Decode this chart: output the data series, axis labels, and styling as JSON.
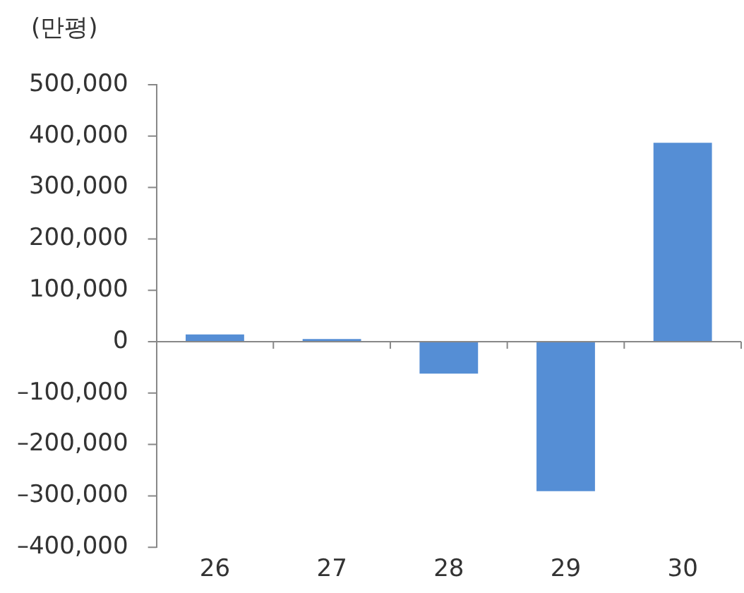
{
  "chart_data": {
    "type": "bar",
    "ylabel": "(만평)",
    "categories": [
      "26",
      "27",
      "28",
      "29",
      "30"
    ],
    "values": [
      14000,
      5000,
      -62000,
      -291000,
      387000
    ],
    "color": "#558ed5",
    "ylim": [
      -400000,
      500000
    ],
    "yticks": [
      {
        "value": -400000,
        "label": "–400,000"
      },
      {
        "value": -300000,
        "label": "–300,000"
      },
      {
        "value": -200000,
        "label": "–200,000"
      },
      {
        "value": -100000,
        "label": "–100,000"
      },
      {
        "value": 0,
        "label": "0"
      },
      {
        "value": 100000,
        "label": "100,000"
      },
      {
        "value": 200000,
        "label": "200,000"
      },
      {
        "value": 300000,
        "label": "300,000"
      },
      {
        "value": 400000,
        "label": "400,000"
      },
      {
        "value": 500000,
        "label": "500,000"
      }
    ],
    "legend": false
  }
}
